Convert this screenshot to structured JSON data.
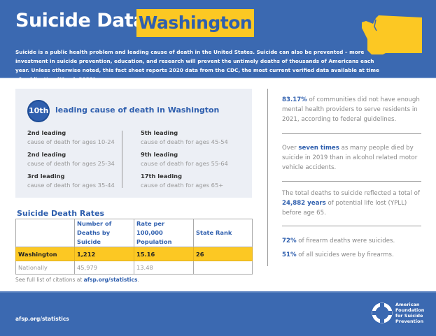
{
  "header": {
    "title": "Suicide Data:",
    "state": "Washington",
    "intro": "Suicide is a public health problem and leading cause of death in the United States. Suicide can also be prevented – more investment in suicide prevention, education, and research will prevent the untimely deaths of thousands of Americans each year. Unless otherwise noted, this fact sheet reports 2020 data from the CDC, the most current verified data available at time of publication (March 2022).",
    "map_icon": "washington-state-map-icon"
  },
  "ranking": {
    "badge": "10th",
    "label": "leading cause of death in Washington",
    "left": [
      {
        "rank": "2nd leading",
        "desc": "cause of death for ages 10-24"
      },
      {
        "rank": "2nd leading",
        "desc": "cause of death for ages 25-34"
      },
      {
        "rank": "3rd leading",
        "desc": "cause of death for ages 35-44"
      }
    ],
    "right": [
      {
        "rank": "5th leading",
        "desc": "cause of death for ages 45-54"
      },
      {
        "rank": "9th leading",
        "desc": "cause of death for ages 55-64"
      },
      {
        "rank": "17th leading",
        "desc": "cause of death for ages 65+"
      }
    ]
  },
  "table": {
    "title": "Suicide Death Rates",
    "headers": [
      "",
      "Number of Deaths by Suicide",
      "Rate per 100,000 Population",
      "State Rank"
    ],
    "rows": [
      [
        "Washington",
        "1,212",
        "15.16",
        "26"
      ],
      [
        "Nationally",
        "45,979",
        "13.48",
        ""
      ]
    ]
  },
  "citation": {
    "prefix": "See full list of citations at ",
    "link": "afsp.org/statistics",
    "suffix": "."
  },
  "facts": [
    {
      "highlight": "83.17%",
      "text": " of communities did not have enough mental health providers to serve residents in 2021, according to federal guidelines."
    },
    {
      "pre": "Over ",
      "highlight": "seven times",
      "text": " as many people died by suicide in 2019 than in alcohol related motor vehicle accidents."
    },
    {
      "pre": "The total deaths to suicide reflected a total of ",
      "highlight": "24,882 years",
      "text": " of potential life lost (YPLL) before age 65."
    },
    {
      "highlight": "72%",
      "text": " of firearm deaths were suicides."
    },
    {
      "highlight": "51%",
      "text": " of all suicides were by firearms."
    }
  ],
  "footer": {
    "url": "afsp.org/statistics",
    "logo_lines": [
      "American",
      "Foundation",
      "for Suicide",
      "Prevention"
    ]
  },
  "colors": {
    "brand_blue": "#3b69b1",
    "accent_yellow": "#fcc823"
  }
}
